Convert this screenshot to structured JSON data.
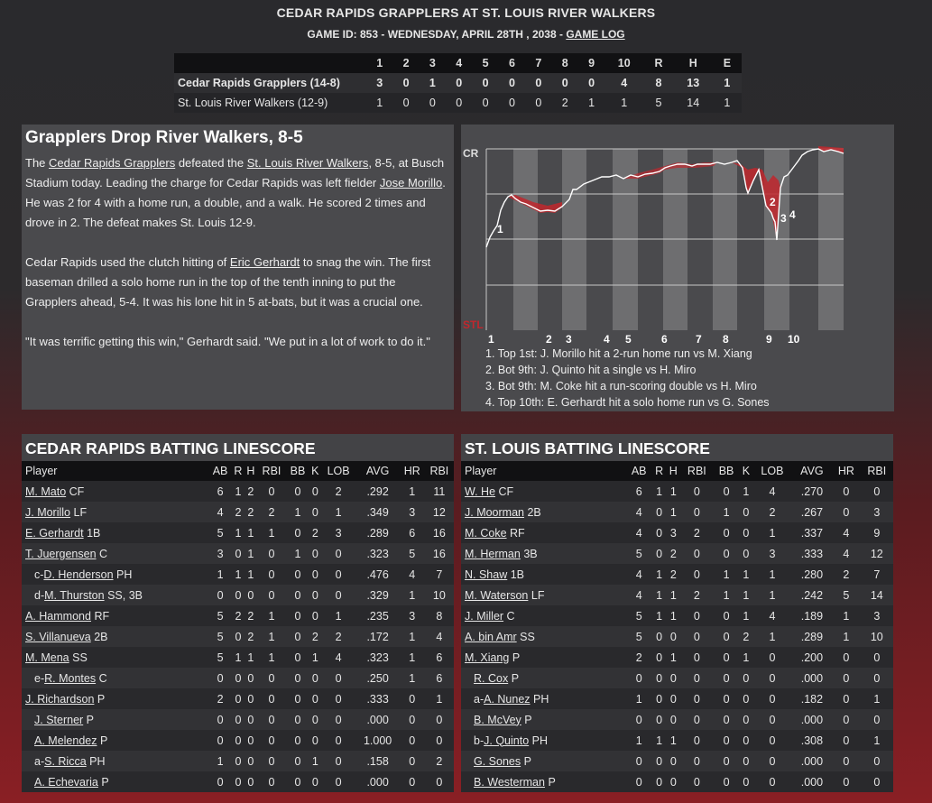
{
  "header": {
    "title": "CEDAR RAPIDS GRAPPLERS AT ST. LOUIS RIVER WALKERS",
    "game_id_prefix": "GAME ID: 853 - WEDNESDAY, APRIL 28TH , 2038 - ",
    "game_log_link": "GAME LOG"
  },
  "linescore": {
    "columns": [
      "",
      "1",
      "2",
      "3",
      "4",
      "5",
      "6",
      "7",
      "8",
      "9",
      "10",
      "R",
      "H",
      "E"
    ],
    "rows": [
      {
        "team": "Cedar Rapids Grapplers (14-8)",
        "innings": [
          "3",
          "0",
          "1",
          "0",
          "0",
          "0",
          "0",
          "0",
          "0",
          "4"
        ],
        "R": "8",
        "H": "13",
        "E": "1"
      },
      {
        "team": "St. Louis River Walkers (12-9)",
        "innings": [
          "1",
          "0",
          "0",
          "0",
          "0",
          "0",
          "0",
          "2",
          "1",
          "1"
        ],
        "R": "5",
        "H": "14",
        "E": "1"
      }
    ]
  },
  "article": {
    "headline": "Grapplers Drop River Walkers, 8-5",
    "p1": {
      "a": "The ",
      "link1": "Cedar Rapids Grapplers",
      "b": " defeated the ",
      "link2": "St. Louis River Walkers",
      "c": ", 8-5, at Busch Stadium today. Leading the charge for Cedar Rapids was left fielder ",
      "link3": "Jose Morillo",
      "d": ". He was 2 for 4 with a home run, a double, and a walk. He scored 2 times and drove in 2. The defeat makes St. Louis 12-9."
    },
    "p2": {
      "a": "Cedar Rapids used the clutch hitting of ",
      "link1": "Eric Gerhardt",
      "b": " to snag the win. The first baseman drilled a solo home run in the top of the tenth inning to put the Grapplers ahead, 5-4. It was his lone hit in 5 at-bats, but it was a crucial one."
    },
    "p3": "\"It was terrific getting this win,\" Gerhardt said. \"We put in a lot of work to do it.\""
  },
  "win_prob_chart": {
    "top_label": "CR",
    "bottom_label": "STL",
    "inning_labels": [
      "1",
      "2",
      "3",
      "4",
      "5",
      "6",
      "7",
      "8",
      "9",
      "10"
    ],
    "event_markers": [
      "1",
      "2",
      "3",
      "4"
    ],
    "line_color": "#ffffff",
    "negative_color": "#c1272d",
    "stripe_color": "#6e6e70",
    "legend": [
      "1. Top 1st: J. Morillo hit a 2-run home run vs M. Xiang",
      "2. Bot 9th: J. Quinto hit a single vs H. Miro",
      "3. Bot 9th: M. Coke hit a run-scoring double vs H. Miro",
      "4. Top 10th: E. Gerhardt hit a solo home run vs G. Sones"
    ]
  },
  "batting_columns": [
    "Player",
    "AB",
    "R",
    "H",
    "RBI",
    "BB",
    "K",
    "LOB",
    "AVG",
    "HR",
    "RBI"
  ],
  "cr_batting": {
    "title": "CEDAR RAPIDS BATTING LINESCORE",
    "rows": [
      {
        "prefix": "",
        "name": "M. Mato",
        "pos": "CF",
        "indent": 0,
        "stats": [
          "6",
          "1",
          "2",
          "0",
          "0",
          "0",
          "2",
          ".292",
          "1",
          "11"
        ]
      },
      {
        "prefix": "",
        "name": "J. Morillo",
        "pos": "LF",
        "indent": 0,
        "stats": [
          "4",
          "2",
          "2",
          "2",
          "1",
          "0",
          "1",
          ".349",
          "3",
          "12"
        ]
      },
      {
        "prefix": "",
        "name": "E. Gerhardt",
        "pos": "1B",
        "indent": 0,
        "stats": [
          "5",
          "1",
          "1",
          "1",
          "0",
          "2",
          "3",
          ".289",
          "6",
          "16"
        ]
      },
      {
        "prefix": "",
        "name": "T. Juergensen",
        "pos": "C",
        "indent": 0,
        "stats": [
          "3",
          "0",
          "1",
          "0",
          "1",
          "0",
          "0",
          ".323",
          "5",
          "16"
        ]
      },
      {
        "prefix": "c-",
        "name": "D. Henderson",
        "pos": "PH",
        "indent": 1,
        "stats": [
          "1",
          "1",
          "1",
          "0",
          "0",
          "0",
          "0",
          ".476",
          "4",
          "7"
        ]
      },
      {
        "prefix": "d-",
        "name": "M. Thurston",
        "pos": "SS, 3B",
        "indent": 1,
        "stats": [
          "0",
          "0",
          "0",
          "0",
          "0",
          "0",
          "0",
          ".329",
          "1",
          "10"
        ]
      },
      {
        "prefix": "",
        "name": "A. Hammond",
        "pos": "RF",
        "indent": 0,
        "stats": [
          "5",
          "2",
          "2",
          "1",
          "0",
          "0",
          "1",
          ".235",
          "3",
          "8"
        ]
      },
      {
        "prefix": "",
        "name": "S. Villanueva",
        "pos": "2B",
        "indent": 0,
        "stats": [
          "5",
          "0",
          "2",
          "1",
          "0",
          "2",
          "2",
          ".172",
          "1",
          "4"
        ]
      },
      {
        "prefix": "",
        "name": "M. Mena",
        "pos": "SS",
        "indent": 0,
        "stats": [
          "5",
          "1",
          "1",
          "1",
          "0",
          "1",
          "4",
          ".323",
          "1",
          "6"
        ]
      },
      {
        "prefix": "e-",
        "name": "R. Montes",
        "pos": "C",
        "indent": 1,
        "stats": [
          "0",
          "0",
          "0",
          "0",
          "0",
          "0",
          "0",
          ".250",
          "1",
          "6"
        ]
      },
      {
        "prefix": "",
        "name": "J. Richardson",
        "pos": "P",
        "indent": 0,
        "stats": [
          "2",
          "0",
          "0",
          "0",
          "0",
          "0",
          "0",
          ".333",
          "0",
          "1"
        ]
      },
      {
        "prefix": "",
        "name": "J. Sterner",
        "pos": "P",
        "indent": 1,
        "stats": [
          "0",
          "0",
          "0",
          "0",
          "0",
          "0",
          "0",
          ".000",
          "0",
          "0"
        ]
      },
      {
        "prefix": "",
        "name": "A. Melendez",
        "pos": "P",
        "indent": 1,
        "stats": [
          "0",
          "0",
          "0",
          "0",
          "0",
          "0",
          "0",
          "1.000",
          "0",
          "0"
        ]
      },
      {
        "prefix": "a-",
        "name": "S. Ricca",
        "pos": "PH",
        "indent": 1,
        "stats": [
          "1",
          "0",
          "0",
          "0",
          "0",
          "1",
          "0",
          ".158",
          "0",
          "2"
        ]
      },
      {
        "prefix": "",
        "name": "A. Echevaria",
        "pos": "P",
        "indent": 1,
        "stats": [
          "0",
          "0",
          "0",
          "0",
          "0",
          "0",
          "0",
          ".000",
          "0",
          "0"
        ]
      }
    ]
  },
  "stl_batting": {
    "title": "ST. LOUIS BATTING LINESCORE",
    "rows": [
      {
        "prefix": "",
        "name": "W. He",
        "pos": "CF",
        "indent": 0,
        "stats": [
          "6",
          "1",
          "1",
          "0",
          "0",
          "1",
          "4",
          ".270",
          "0",
          "0"
        ]
      },
      {
        "prefix": "",
        "name": "J. Moorman",
        "pos": "2B",
        "indent": 0,
        "stats": [
          "4",
          "0",
          "1",
          "0",
          "1",
          "0",
          "2",
          ".267",
          "0",
          "3"
        ]
      },
      {
        "prefix": "",
        "name": "M. Coke",
        "pos": "RF",
        "indent": 0,
        "stats": [
          "4",
          "0",
          "3",
          "2",
          "0",
          "0",
          "1",
          ".337",
          "4",
          "9"
        ]
      },
      {
        "prefix": "",
        "name": "M. Herman",
        "pos": "3B",
        "indent": 0,
        "stats": [
          "5",
          "0",
          "2",
          "0",
          "0",
          "0",
          "3",
          ".333",
          "4",
          "12"
        ]
      },
      {
        "prefix": "",
        "name": "N. Shaw",
        "pos": "1B",
        "indent": 0,
        "stats": [
          "4",
          "1",
          "2",
          "0",
          "1",
          "1",
          "1",
          ".280",
          "2",
          "7"
        ]
      },
      {
        "prefix": "",
        "name": "M. Waterson",
        "pos": "LF",
        "indent": 0,
        "stats": [
          "4",
          "1",
          "1",
          "2",
          "1",
          "1",
          "1",
          ".242",
          "5",
          "14"
        ]
      },
      {
        "prefix": "",
        "name": "J. Miller",
        "pos": "C",
        "indent": 0,
        "stats": [
          "5",
          "1",
          "1",
          "0",
          "0",
          "1",
          "4",
          ".189",
          "1",
          "3"
        ]
      },
      {
        "prefix": "",
        "name": "A. bin Amr",
        "pos": "SS",
        "indent": 0,
        "stats": [
          "5",
          "0",
          "0",
          "0",
          "0",
          "2",
          "1",
          ".289",
          "1",
          "10"
        ]
      },
      {
        "prefix": "",
        "name": "M. Xiang",
        "pos": "P",
        "indent": 0,
        "stats": [
          "2",
          "0",
          "1",
          "0",
          "0",
          "1",
          "0",
          ".200",
          "0",
          "0"
        ]
      },
      {
        "prefix": "",
        "name": "R. Cox",
        "pos": "P",
        "indent": 1,
        "stats": [
          "0",
          "0",
          "0",
          "0",
          "0",
          "0",
          "0",
          ".000",
          "0",
          "0"
        ]
      },
      {
        "prefix": "a-",
        "name": "A. Nunez",
        "pos": "PH",
        "indent": 1,
        "stats": [
          "1",
          "0",
          "0",
          "0",
          "0",
          "0",
          "0",
          ".182",
          "0",
          "1"
        ]
      },
      {
        "prefix": "",
        "name": "B. McVey",
        "pos": "P",
        "indent": 1,
        "stats": [
          "0",
          "0",
          "0",
          "0",
          "0",
          "0",
          "0",
          ".000",
          "0",
          "0"
        ]
      },
      {
        "prefix": "b-",
        "name": "J. Quinto",
        "pos": "PH",
        "indent": 1,
        "stats": [
          "1",
          "1",
          "1",
          "0",
          "0",
          "0",
          "0",
          ".308",
          "0",
          "1"
        ]
      },
      {
        "prefix": "",
        "name": "G. Sones",
        "pos": "P",
        "indent": 1,
        "stats": [
          "0",
          "0",
          "0",
          "0",
          "0",
          "0",
          "0",
          ".000",
          "0",
          "0"
        ]
      },
      {
        "prefix": "",
        "name": "B. Westerman",
        "pos": "P",
        "indent": 1,
        "stats": [
          "0",
          "0",
          "0",
          "0",
          "0",
          "0",
          "0",
          ".000",
          "0",
          "0"
        ]
      }
    ]
  }
}
